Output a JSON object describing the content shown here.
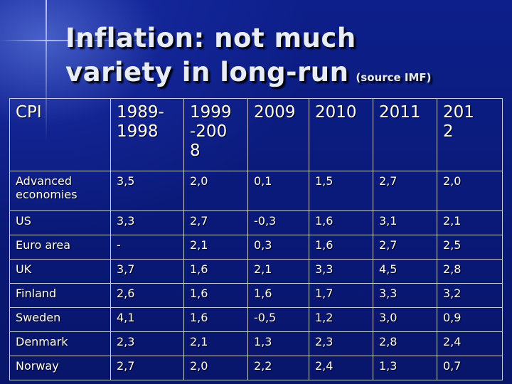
{
  "slide": {
    "title_line1": "Inflation: not much",
    "title_line2": "variety in long-run",
    "source": "(source IMF)"
  },
  "table": {
    "headers": [
      "CPI",
      "1989-\n1998",
      "1999\n-200\n8",
      "2009",
      "2010",
      "2011",
      "201\n2"
    ],
    "rows": [
      [
        "Advanced economies",
        "3,5",
        "2,0",
        "0,1",
        "1,5",
        "2,7",
        "2,0"
      ],
      [
        "US",
        "3,3",
        "2,7",
        "-0,3",
        "1,6",
        "3,1",
        "2,1"
      ],
      [
        "Euro area",
        "-",
        "2,1",
        "0,3",
        "1,6",
        "2,7",
        "2,5"
      ],
      [
        "UK",
        "3,7",
        "1,6",
        "2,1",
        "3,3",
        "4,5",
        "2,8"
      ],
      [
        "Finland",
        "2,6",
        "1,6",
        "1,6",
        "1,7",
        "3,3",
        "3,2"
      ],
      [
        "Sweden",
        "4,1",
        "1,6",
        "-0,5",
        "1,2",
        "3,0",
        "0,9"
      ],
      [
        "Denmark",
        "2,3",
        "2,1",
        "1,3",
        "2,3",
        "2,8",
        "2,4"
      ],
      [
        "Norway",
        "2,7",
        "2,0",
        "2,2",
        "2,4",
        "1,3",
        "0,7"
      ]
    ]
  }
}
